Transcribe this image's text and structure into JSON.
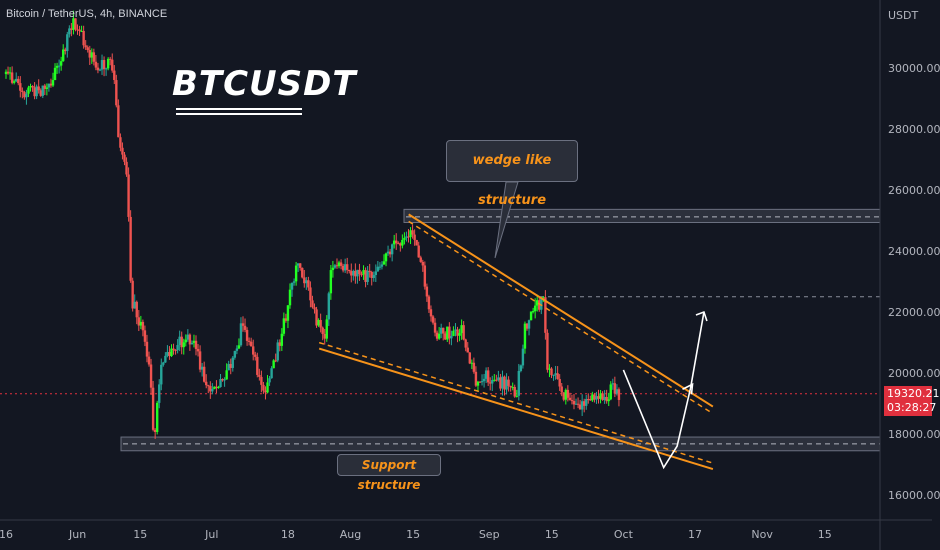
{
  "header": {
    "symbol_line": "Bitcoin / TetherUS, 4h, BINANCE"
  },
  "title": "BTCUSDT",
  "annotations": {
    "wedge": "wedge like structure",
    "support": "Support structure"
  },
  "price_axis": {
    "currency": "USDT",
    "ticks": [
      "30000.00",
      "28000.00",
      "26000.00",
      "24000.00",
      "22000.00",
      "20000.00",
      "18000.00",
      "16000.00"
    ],
    "current_price": "19320.21",
    "countdown": "03:28:27"
  },
  "time_axis": {
    "ticks": [
      "16",
      "Jun",
      "15",
      "Jul",
      "18",
      "Aug",
      "15",
      "Sep",
      "15",
      "Oct",
      "17",
      "Nov",
      "15"
    ]
  },
  "colors": {
    "background": "#131722",
    "up": "#26a69a",
    "up_bright": "#22ff22",
    "down": "#ef5350",
    "trendline": "#f7931a",
    "zone": "#3a3d47",
    "price_line": "#e0303e",
    "arrow": "#ffffff"
  },
  "chart_data": {
    "type": "candlestick",
    "title": "BTCUSDT",
    "ylabel": "USDT",
    "ylim": [
      15000,
      32000
    ],
    "xlim": [
      "2022-05-16",
      "2022-11-24"
    ],
    "close_path": [
      [
        "2022-05-16",
        29800
      ],
      [
        "2022-05-20",
        29200
      ],
      [
        "2022-05-26",
        29400
      ],
      [
        "2022-05-31",
        31500
      ],
      [
        "2022-06-05",
        30200
      ],
      [
        "2022-06-09",
        30000
      ],
      [
        "2022-06-10",
        28000
      ],
      [
        "2022-06-12",
        26500
      ],
      [
        "2022-06-13",
        22500
      ],
      [
        "2022-06-15",
        21500
      ],
      [
        "2022-06-17",
        20500
      ],
      [
        "2022-06-18",
        17800
      ],
      [
        "2022-06-20",
        20500
      ],
      [
        "2022-06-26",
        21200
      ],
      [
        "2022-07-01",
        19300
      ],
      [
        "2022-07-06",
        20500
      ],
      [
        "2022-07-08",
        21700
      ],
      [
        "2022-07-11",
        20200
      ],
      [
        "2022-07-13",
        19200
      ],
      [
        "2022-07-17",
        21500
      ],
      [
        "2022-07-20",
        23700
      ],
      [
        "2022-07-23",
        22500
      ],
      [
        "2022-07-26",
        21000
      ],
      [
        "2022-07-28",
        23700
      ],
      [
        "2022-08-01",
        23200
      ],
      [
        "2022-08-06",
        23100
      ],
      [
        "2022-08-11",
        24200
      ],
      [
        "2022-08-14",
        24700
      ],
      [
        "2022-08-17",
        23500
      ],
      [
        "2022-08-20",
        21200
      ],
      [
        "2022-08-26",
        21500
      ],
      [
        "2022-08-29",
        19800
      ],
      [
        "2022-09-02",
        19900
      ],
      [
        "2022-09-07",
        19300
      ],
      [
        "2022-09-09",
        21500
      ],
      [
        "2022-09-13",
        22500
      ],
      [
        "2022-09-14",
        20200
      ],
      [
        "2022-09-19",
        19000
      ],
      [
        "2022-09-25",
        19100
      ],
      [
        "2022-09-29",
        19500
      ],
      [
        "2022-09-30",
        19320
      ]
    ],
    "levels": {
      "resistance_zone": [
        25000,
        25300
      ],
      "support_zone": [
        17450,
        17900
      ],
      "dashed_resistance": 22500,
      "current_price": 19320.21
    },
    "wedge": {
      "upper": [
        [
          "2022-08-14",
          25200
        ],
        [
          "2022-10-21",
          18900
        ]
      ],
      "lower": [
        [
          "2022-07-25",
          20800
        ],
        [
          "2022-10-21",
          16850
        ]
      ]
    },
    "projection": [
      [
        "2022-10-01",
        20100
      ],
      [
        "2022-10-10",
        16900
      ],
      [
        "2022-10-13",
        17600
      ],
      [
        "2022-10-16",
        19500
      ],
      [
        "2022-10-19",
        22000
      ]
    ]
  }
}
